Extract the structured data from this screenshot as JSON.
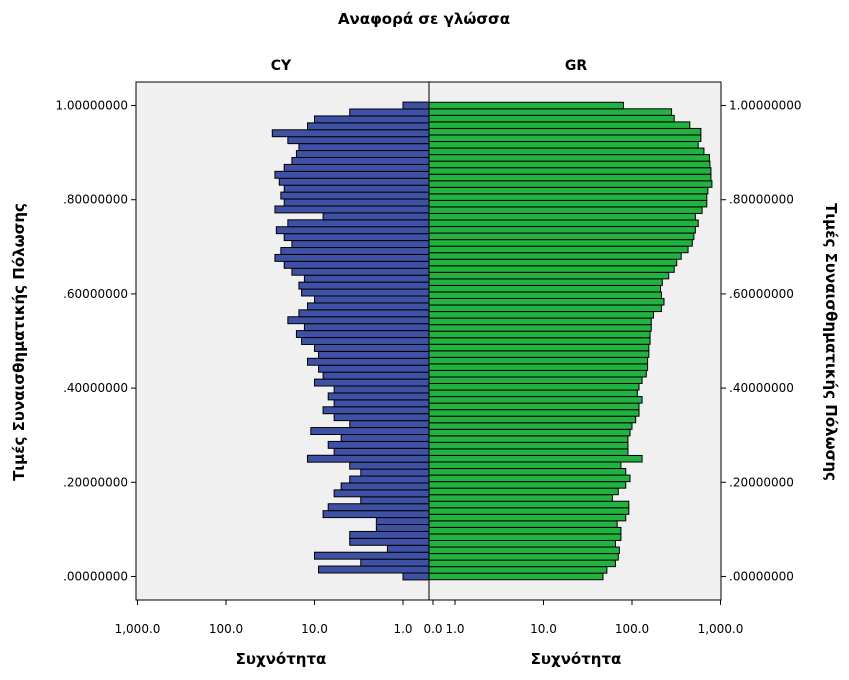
{
  "chart_data": {
    "type": "bar",
    "orientation": "horizontal-population-pyramid",
    "title": "Αναφορά σε γλώσσα",
    "panels": [
      "CY",
      "GR"
    ],
    "ylabel": "Τιμές Συναισθηματικής Πόλωσης",
    "xlabel": "Συχνότητα",
    "x_scale": "log",
    "x_ticks_left": [
      "1,000.0",
      "100.0",
      "10.0",
      "1.0"
    ],
    "x_ticks_right": [
      "0.0",
      "1.0",
      "10.0",
      "100.0",
      "1,000.0"
    ],
    "y_ticks": [
      ".00000000",
      ".20000000",
      ".40000000",
      ".60000000",
      ".80000000",
      "1.00000000"
    ],
    "ylim": [
      -0.05,
      1.05
    ],
    "grid": false,
    "series": [
      {
        "name": "CY",
        "color": "#3f51a5",
        "values": [
          1,
          9,
          3,
          10,
          1.5,
          4,
          4,
          2,
          2,
          8,
          7,
          3,
          6,
          5,
          4,
          3,
          4,
          12,
          6,
          7,
          5,
          11,
          4,
          6,
          8,
          6,
          7,
          6,
          10,
          8,
          9,
          12,
          9,
          10,
          14,
          16,
          13,
          20,
          15,
          12,
          10,
          14,
          15,
          13,
          18,
          22,
          28,
          24,
          18,
          22,
          27,
          20,
          8,
          28,
          22,
          24,
          22,
          25,
          28,
          22,
          18,
          16,
          15,
          20,
          30,
          12,
          10,
          4,
          1
        ]
      },
      {
        "name": "GR",
        "color": "#21b240",
        "values": [
          47,
          52,
          65,
          70,
          72,
          65,
          75,
          75,
          68,
          85,
          92,
          92,
          60,
          70,
          85,
          95,
          85,
          75,
          130,
          90,
          90,
          90,
          95,
          100,
          110,
          120,
          120,
          130,
          115,
          120,
          130,
          145,
          150,
          150,
          155,
          155,
          160,
          160,
          165,
          165,
          175,
          215,
          230,
          215,
          210,
          220,
          260,
          300,
          320,
          360,
          430,
          480,
          500,
          520,
          560,
          520,
          620,
          700,
          700,
          720,
          800,
          780,
          780,
          760,
          750,
          650,
          560,
          600,
          600,
          450,
          300,
          280,
          80
        ]
      }
    ]
  }
}
